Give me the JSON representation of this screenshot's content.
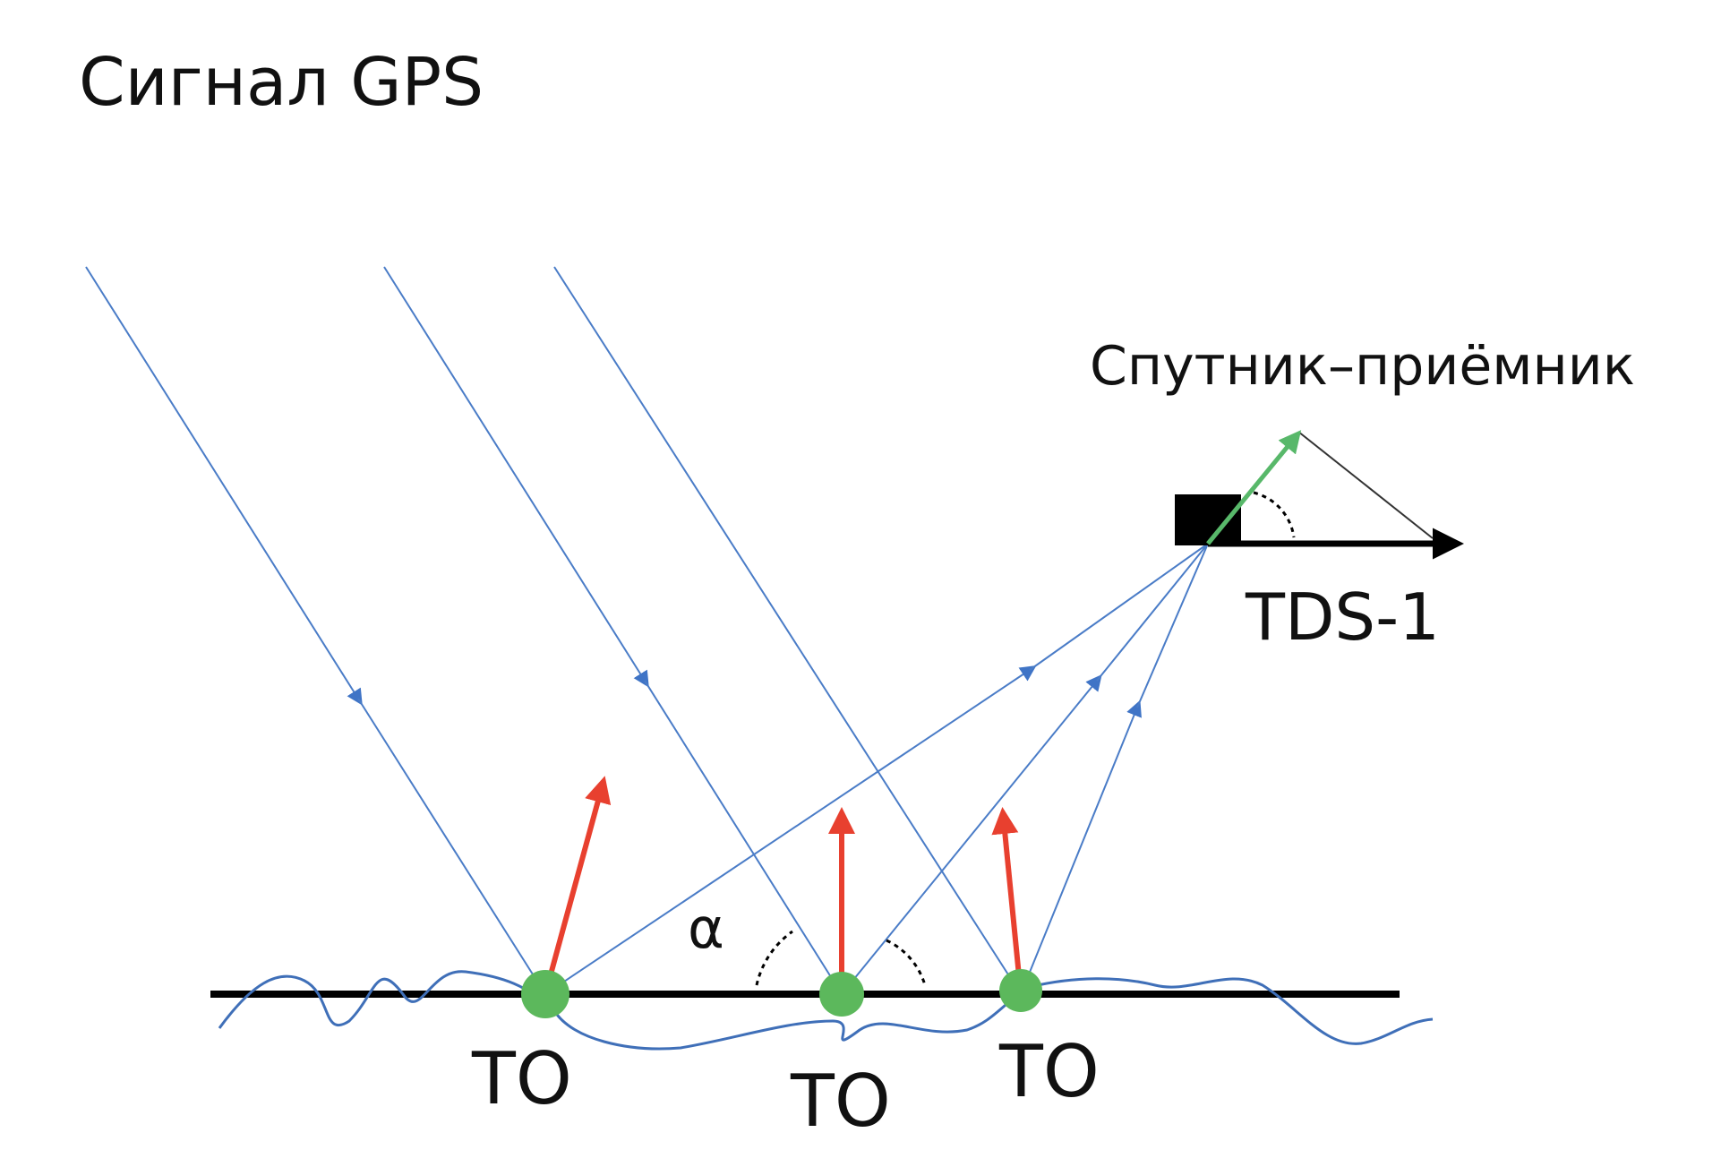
{
  "title": "Сигнал GPS",
  "receiver": {
    "label": "Спутник–приёмник",
    "name": "TDS-1"
  },
  "angle": "α",
  "points": [
    {
      "label": "ТО"
    },
    {
      "label": "ТО"
    },
    {
      "label": "ТО"
    }
  ]
}
